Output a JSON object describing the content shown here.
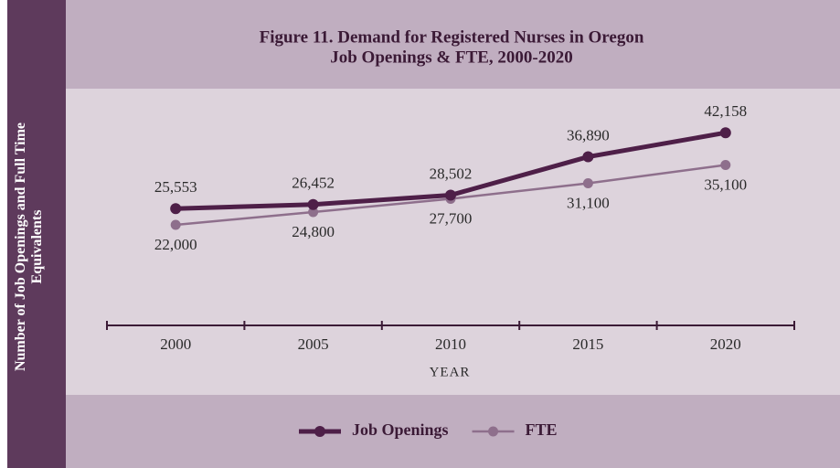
{
  "chart_data": {
    "type": "line",
    "title": "Figure 11. Demand for Registered Nurses in Oregon",
    "subtitle": "Job Openings & FTE, 2000-2020",
    "y_label": "Number of Job Openings and Full Time Equivalents",
    "x_label": "YEAR",
    "categories": [
      "2000",
      "2005",
      "2010",
      "2015",
      "2020"
    ],
    "ylim": [
      0,
      50000
    ],
    "series": [
      {
        "name": "Job Openings",
        "color": "#4e1f48",
        "values": [
          25553,
          26452,
          28502,
          36890,
          42158
        ],
        "value_labels": [
          "25,553",
          "26,452",
          "28,502",
          "36,890",
          "42,158"
        ]
      },
      {
        "name": "FTE",
        "color": "#8e6f8c",
        "values": [
          22000,
          24800,
          27700,
          31100,
          35100
        ],
        "value_labels": [
          "22,000",
          "24,800",
          "27,700",
          "31,100",
          "35,100"
        ]
      }
    ]
  }
}
